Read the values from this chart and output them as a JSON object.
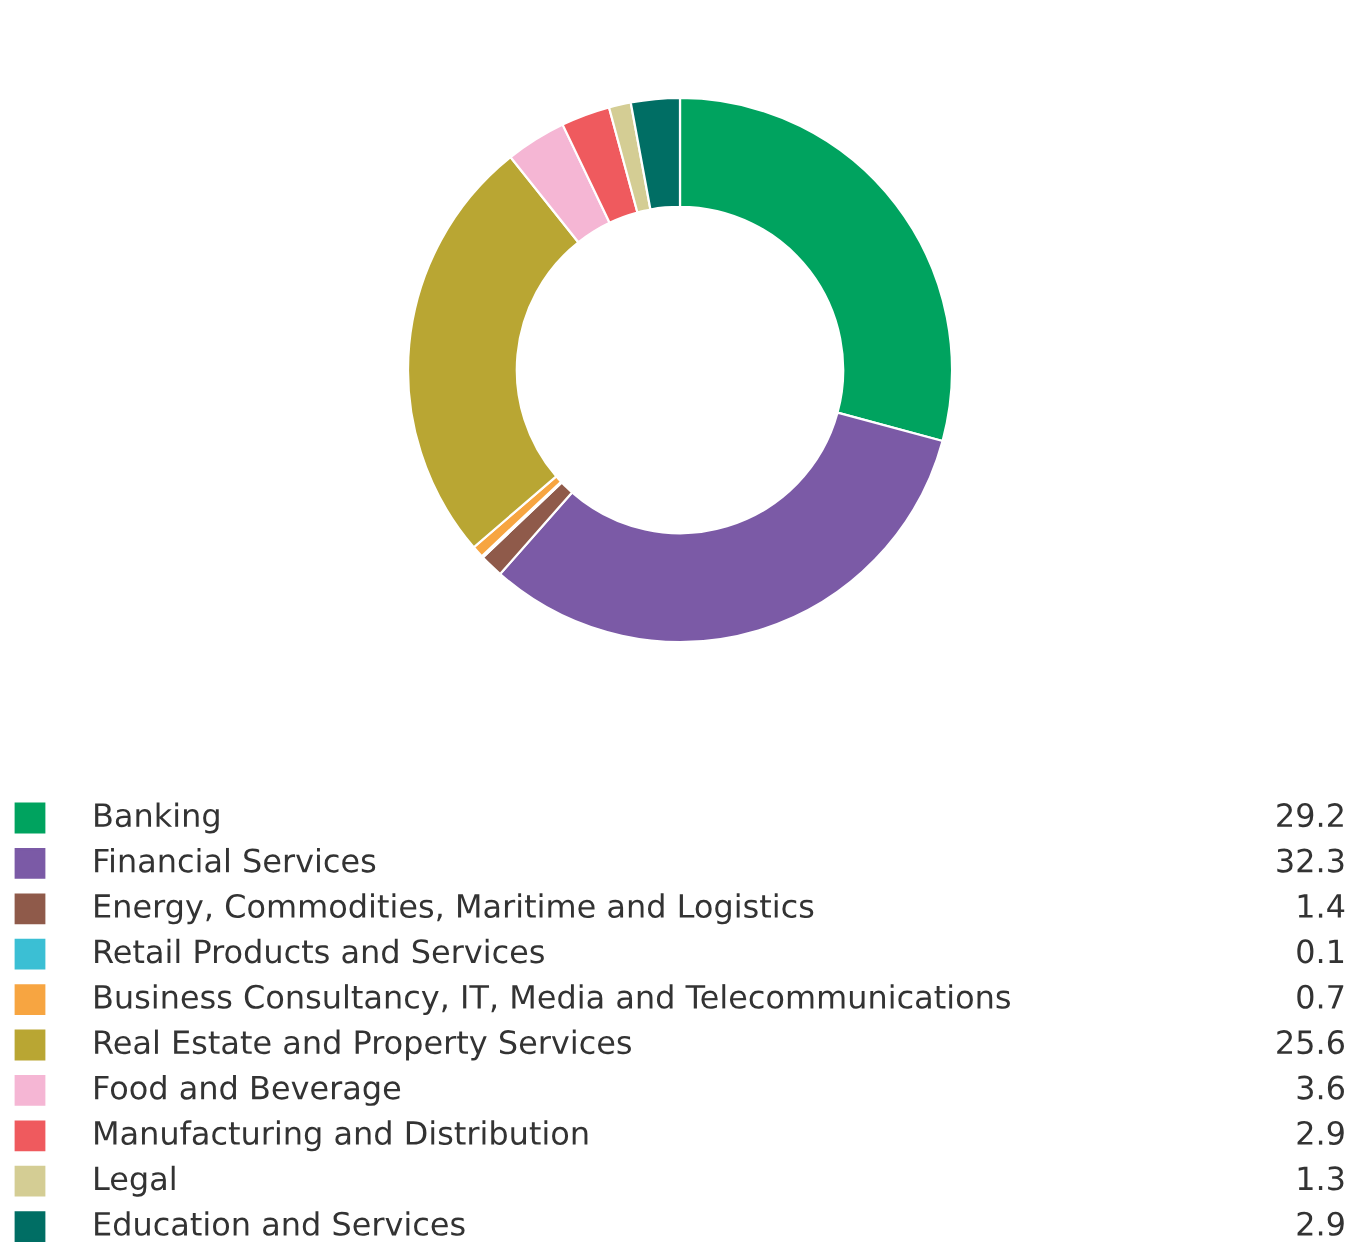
{
  "chart_data": {
    "type": "donut",
    "categories": [
      "Banking",
      "Financial Services",
      "Energy, Commodities, Maritime and Logistics",
      "Retail Products and Services",
      "Business Consultancy, IT, Media and Telecommunications",
      "Real Estate and Property Services",
      "Food and Beverage",
      "Manufacturing and Distribution",
      "Legal",
      "Education and Services"
    ],
    "values": [
      29.2,
      32.3,
      1.4,
      0.1,
      0.7,
      25.6,
      3.6,
      2.9,
      1.3,
      2.9
    ],
    "colors": [
      "#00a35f",
      "#7b5aa6",
      "#8f5a4a",
      "#3bbfd4",
      "#f7a541",
      "#b9a633",
      "#f5b6d4",
      "#ef5a5e",
      "#d4cd94",
      "#006e64"
    ],
    "data_labels": true,
    "legend": "bottom"
  }
}
